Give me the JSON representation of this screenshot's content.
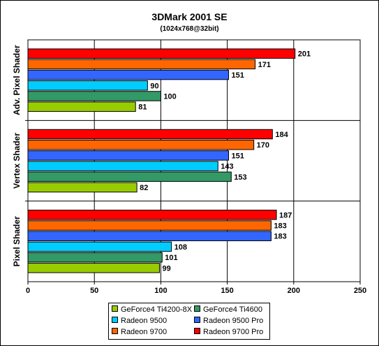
{
  "chart_data": {
    "type": "bar",
    "orientation": "horizontal",
    "title": "3DMark 2001 SE",
    "subtitle": "(1024x768@32bit)",
    "groups": [
      "Adv. Pixel Shader",
      "Vertex Shader",
      "Pixel Shader"
    ],
    "series": [
      {
        "name": "GeForce4 Ti4200-8X",
        "color": "#99cc00",
        "values": [
          81,
          82,
          99
        ]
      },
      {
        "name": "GeForce4 Ti4600",
        "color": "#339966",
        "values": [
          100,
          153,
          101
        ]
      },
      {
        "name": "Radeon 9500",
        "color": "#00ccff",
        "values": [
          90,
          143,
          108
        ]
      },
      {
        "name": "Radeon 9500 Pro",
        "color": "#3366ff",
        "values": [
          151,
          151,
          183
        ]
      },
      {
        "name": "Radeon 9700",
        "color": "#ff6600",
        "values": [
          171,
          170,
          183
        ]
      },
      {
        "name": "Radeon 9700 Pro",
        "color": "#ff0000",
        "values": [
          201,
          184,
          187
        ]
      }
    ],
    "xlim": [
      0,
      250
    ],
    "xticks": [
      0,
      50,
      100,
      150,
      200,
      250
    ],
    "grid": true,
    "legend_position": "bottom"
  }
}
